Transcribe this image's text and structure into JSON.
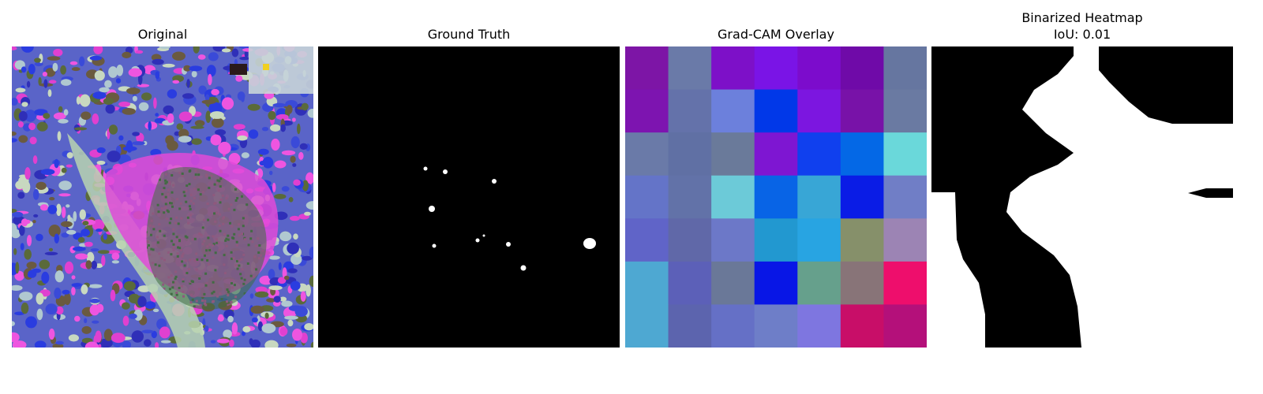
{
  "panels": [
    {
      "id": "original",
      "title": "Original"
    },
    {
      "id": "ground-truth",
      "title": "Ground Truth"
    },
    {
      "id": "gradcam",
      "title": "Grad-CAM Overlay"
    },
    {
      "id": "binarized",
      "title": "Binarized Heatmap",
      "subtitle": "IoU: 0.01"
    }
  ],
  "gradcam_grid": [
    [
      "#7d15a6",
      "#6a7aa8",
      "#7d10c8",
      "#7a14e6",
      "#7c0ccc",
      "#6f0aa8",
      "#6676a0"
    ],
    [
      "#7d14b0",
      "#6472aa",
      "#6c80dc",
      "#0138e8",
      "#7c16e0",
      "#7812a8",
      "#6a7aa2"
    ],
    [
      "#6a7aa8",
      "#6070a4",
      "#6a7a9a",
      "#7e16d2",
      "#1040ee",
      "#0468e6",
      "#6ad8da"
    ],
    [
      "#6474c8",
      "#6272a8",
      "#6ccad8",
      "#0864e6",
      "#38a6d6",
      "#0a1ce6",
      "#707ec6"
    ],
    [
      "#6064c8",
      "#6068a8",
      "#6c78c8",
      "#2298d0",
      "#28a4e2",
      "#86906a",
      "#9c84b4"
    ],
    [
      "#4ea8d2",
      "#5c60b8",
      "#6a7898",
      "#0816e6",
      "#66a08c",
      "#887478",
      "#ee0e6c"
    ],
    [
      "#4ea8d2",
      "#5c64ae",
      "#6570c6",
      "#6e7ec8",
      "#7e76e0",
      "#c80e68",
      "#b4107a"
    ]
  ],
  "colors": {
    "background": "#ffffff",
    "mask_fg": "#ffffff",
    "mask_bg": "#000000"
  }
}
